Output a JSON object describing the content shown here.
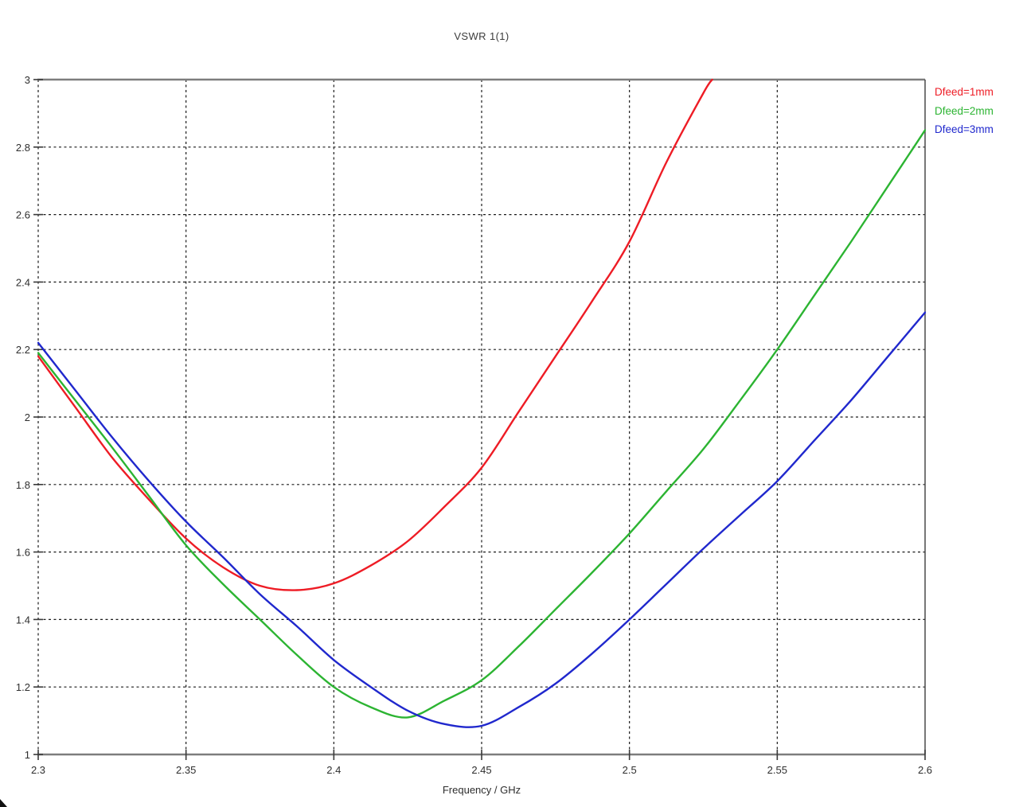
{
  "title": "VSWR 1(1)",
  "legend": [
    {
      "label": "Dfeed=1mm",
      "color": "#ee1c25"
    },
    {
      "label": "Dfeed=2mm",
      "color": "#2cb432"
    },
    {
      "label": "Dfeed=3mm",
      "color": "#2028cd"
    }
  ],
  "axes": {
    "x": {
      "label": "Frequency / GHz",
      "tick_labels": [
        "2.3",
        "2.35",
        "2.4",
        "2.45",
        "2.5",
        "2.55",
        "2.6"
      ]
    },
    "y": {
      "tick_labels": [
        "1",
        "1.2",
        "1.4",
        "1.6",
        "1.8",
        "2",
        "2.2",
        "2.4",
        "2.6",
        "2.8",
        "3"
      ]
    }
  },
  "chart_data": {
    "type": "line",
    "title": "VSWR 1(1)",
    "xlabel": "Frequency / GHz",
    "ylabel": "",
    "xlim": [
      2.3,
      2.6
    ],
    "ylim": [
      1,
      3
    ],
    "x_ticks": [
      2.3,
      2.35,
      2.4,
      2.45,
      2.5,
      2.55,
      2.6
    ],
    "y_ticks": [
      1,
      1.2,
      1.4,
      1.6,
      1.8,
      2,
      2.2,
      2.4,
      2.6,
      2.8,
      3
    ],
    "grid": "dashed",
    "legend_position": "outside-top-right",
    "series": [
      {
        "name": "Dfeed=1mm",
        "color": "#ee1c25",
        "x": [
          2.3,
          2.3125,
          2.325,
          2.3375,
          2.35,
          2.3625,
          2.375,
          2.3875,
          2.4,
          2.4125,
          2.425,
          2.4375,
          2.45,
          2.4625,
          2.475,
          2.4875,
          2.5,
          2.5125,
          2.525,
          2.528
        ],
        "y": [
          2.18,
          2.03,
          1.88,
          1.755,
          1.64,
          1.555,
          1.5,
          1.487,
          1.507,
          1.56,
          1.632,
          1.735,
          1.85,
          2.015,
          2.18,
          2.345,
          2.52,
          2.755,
          2.96,
          3.0
        ]
      },
      {
        "name": "Dfeed=2mm",
        "color": "#2cb432",
        "x": [
          2.3,
          2.3125,
          2.325,
          2.3375,
          2.35,
          2.3625,
          2.375,
          2.3875,
          2.4,
          2.4125,
          2.425,
          2.4375,
          2.45,
          2.4625,
          2.475,
          2.4875,
          2.5,
          2.5125,
          2.525,
          2.5375,
          2.55,
          2.5625,
          2.575,
          2.5875,
          2.6
        ],
        "y": [
          2.19,
          2.05,
          1.91,
          1.765,
          1.62,
          1.505,
          1.4,
          1.295,
          1.2,
          1.14,
          1.11,
          1.16,
          1.22,
          1.32,
          1.43,
          1.54,
          1.655,
          1.78,
          1.905,
          2.05,
          2.2,
          2.36,
          2.52,
          2.685,
          2.85
        ]
      },
      {
        "name": "Dfeed=3mm",
        "color": "#2028cd",
        "x": [
          2.3,
          2.3125,
          2.325,
          2.3375,
          2.35,
          2.3625,
          2.375,
          2.3875,
          2.4,
          2.4125,
          2.425,
          2.4375,
          2.45,
          2.4625,
          2.475,
          2.4875,
          2.5,
          2.5125,
          2.525,
          2.5375,
          2.55,
          2.5625,
          2.575,
          2.5875,
          2.6
        ],
        "y": [
          2.22,
          2.08,
          1.94,
          1.81,
          1.69,
          1.585,
          1.475,
          1.38,
          1.28,
          1.2,
          1.13,
          1.09,
          1.085,
          1.14,
          1.21,
          1.3,
          1.4,
          1.505,
          1.61,
          1.71,
          1.81,
          1.93,
          2.05,
          2.18,
          2.31
        ]
      }
    ]
  }
}
